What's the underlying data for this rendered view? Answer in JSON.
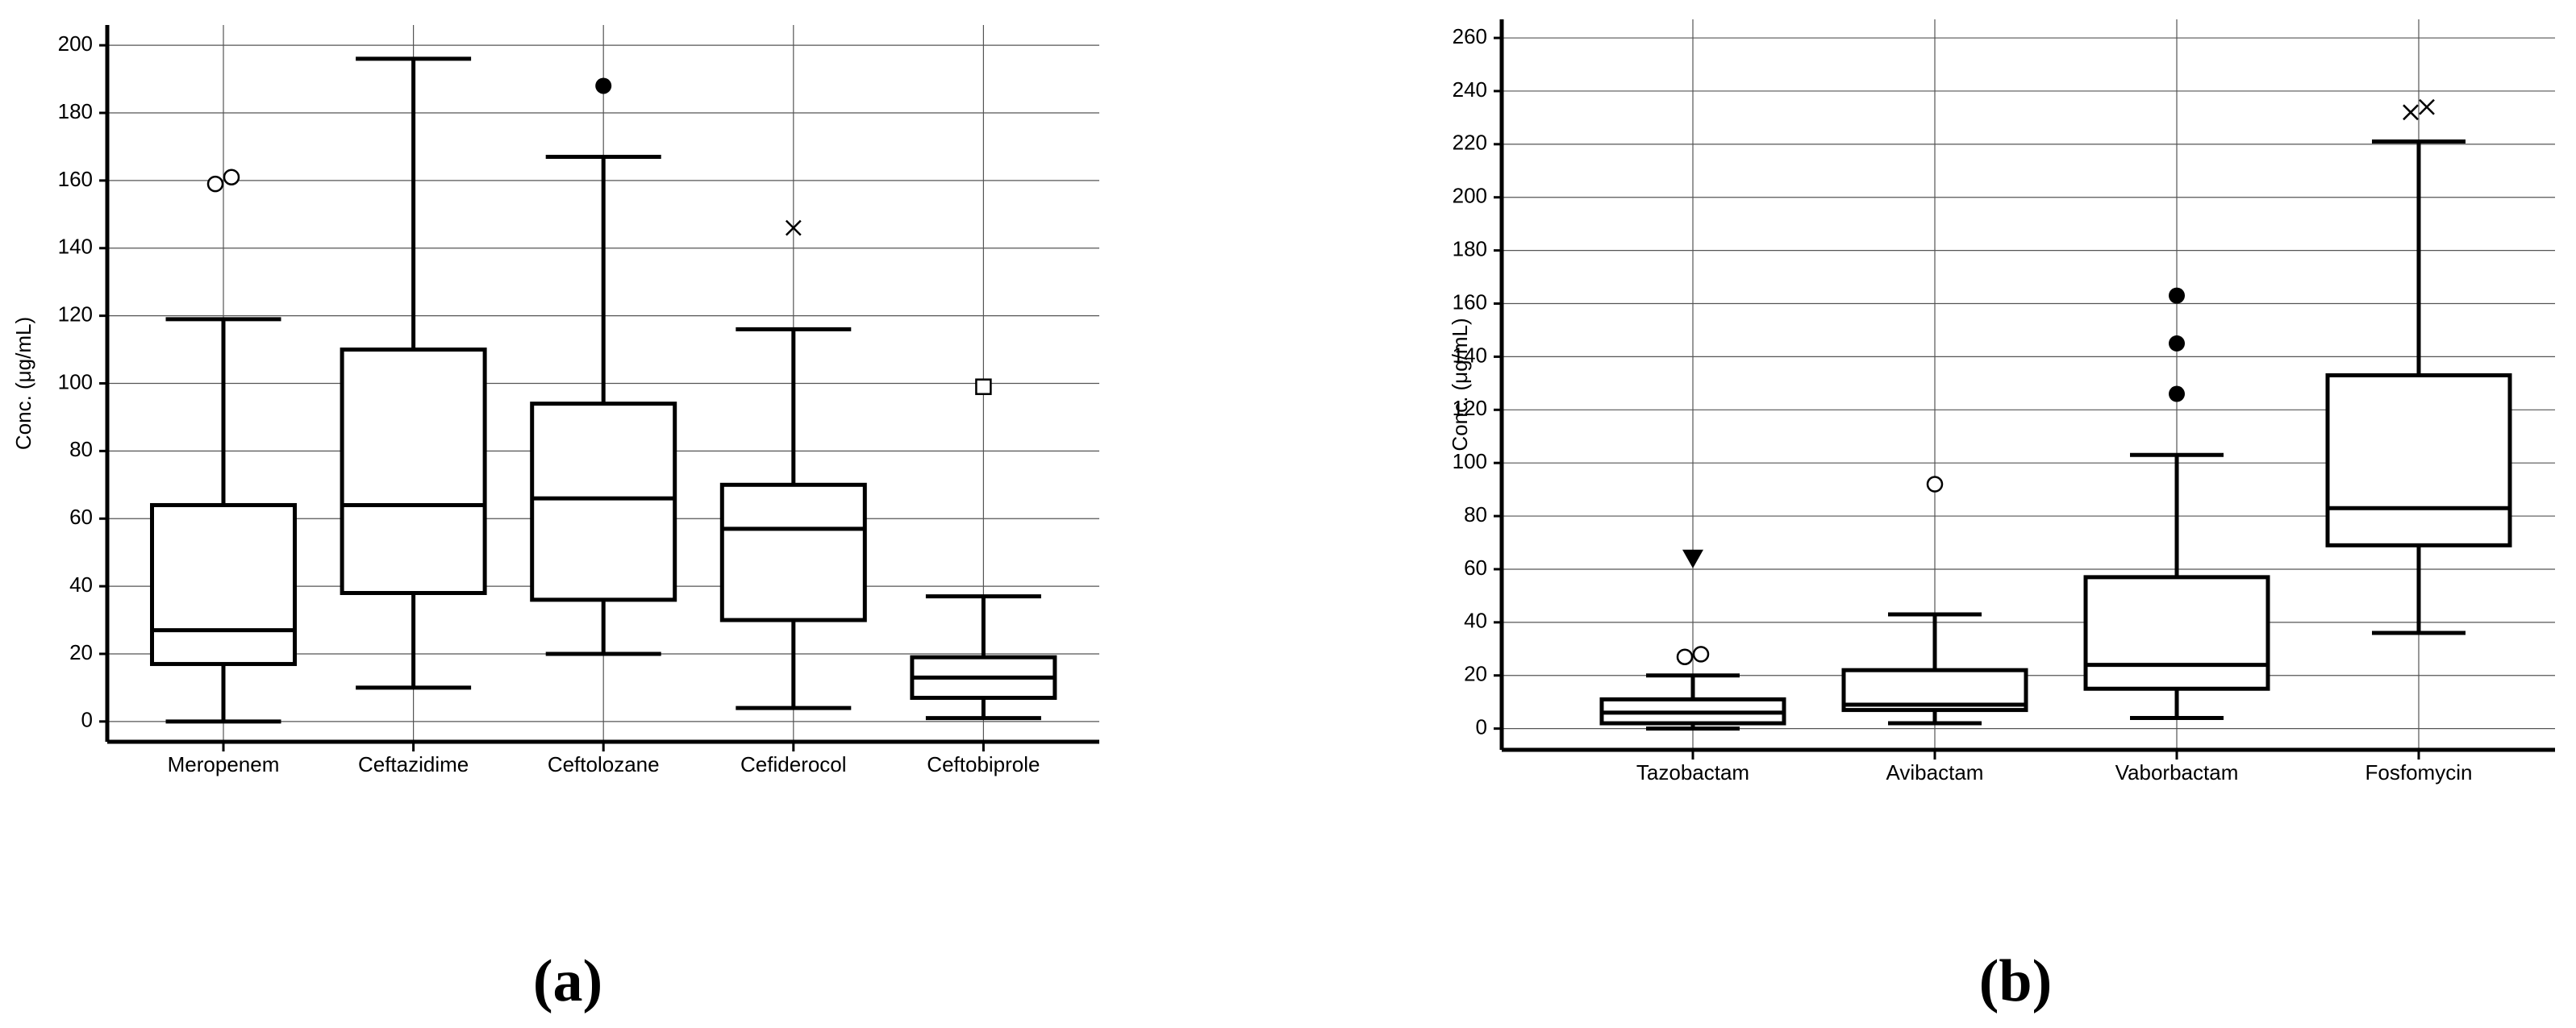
{
  "chart_data": [
    {
      "type": "box",
      "label": "(a)",
      "ylabel": "Conc. (μg/mL)",
      "grid": true,
      "color": "#000000",
      "ylim": [
        -6,
        206
      ],
      "yticks": [
        0,
        20,
        40,
        60,
        80,
        100,
        120,
        140,
        160,
        180,
        200
      ],
      "categories": [
        "Meropenem",
        "Ceftazidime",
        "Ceftolozane",
        "Cefiderocol",
        "Ceftobiprole"
      ],
      "boxes": [
        {
          "low": 0,
          "q1": 17,
          "median": 27,
          "q3": 64,
          "high": 119,
          "marker": "circle-open",
          "outliers": [
            159,
            161
          ]
        },
        {
          "low": 10,
          "q1": 38,
          "median": 64,
          "q3": 110,
          "high": 196,
          "marker": "circle-open",
          "outliers": []
        },
        {
          "low": 20,
          "q1": 36,
          "median": 66,
          "q3": 94,
          "high": 167,
          "marker": "circle-filled",
          "outliers": [
            188
          ]
        },
        {
          "low": 4,
          "q1": 30,
          "median": 57,
          "q3": 70,
          "high": 116,
          "marker": "x",
          "outliers": [
            146
          ]
        },
        {
          "low": 1,
          "q1": 7,
          "median": 13,
          "q3": 19,
          "high": 37,
          "marker": "square-open",
          "outliers": [
            99
          ]
        }
      ]
    },
    {
      "type": "box",
      "label": "(b)",
      "ylabel": "Conc. (μg/mL)",
      "grid": true,
      "color": "#000000",
      "ylim": [
        -8,
        267
      ],
      "yticks": [
        0,
        20,
        40,
        60,
        80,
        100,
        120,
        140,
        160,
        180,
        200,
        220,
        240,
        260
      ],
      "categories": [
        "Tazobactam",
        "Avibactam",
        "Vaborbactam",
        "Fosfomycin"
      ],
      "boxes": [
        {
          "low": 0,
          "q1": 2,
          "median": 6,
          "q3": 11,
          "high": 20,
          "marker": "circle-open",
          "outliers": [
            27,
            28
          ],
          "extreme_marker": "triangle-filled",
          "extremes": [
            64
          ]
        },
        {
          "low": 2,
          "q1": 7,
          "median": 9,
          "q3": 22,
          "high": 43,
          "marker": "circle-open",
          "outliers": [
            92
          ]
        },
        {
          "low": 4,
          "q1": 15,
          "median": 24,
          "q3": 57,
          "high": 103,
          "marker": "circle-filled",
          "outliers": [
            126,
            145,
            163
          ]
        },
        {
          "low": 36,
          "q1": 69,
          "median": 83,
          "q3": 133,
          "high": 221,
          "marker": "x",
          "outliers": [
            232,
            234
          ]
        }
      ]
    }
  ]
}
